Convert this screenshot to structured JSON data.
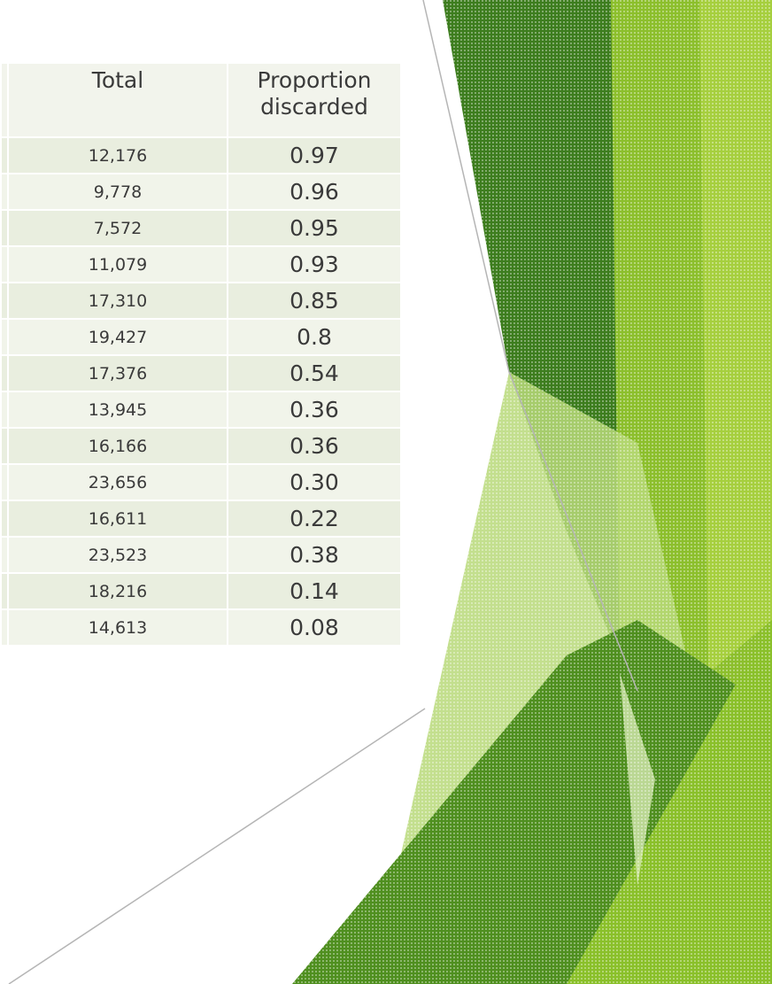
{
  "table": {
    "headers": [
      "Total",
      "Proportion discarded"
    ],
    "rows": [
      [
        "12,176",
        "0.97"
      ],
      [
        "9,778",
        "0.96"
      ],
      [
        "7,572",
        "0.95"
      ],
      [
        "11,079",
        "0.93"
      ],
      [
        "17,310",
        "0.85"
      ],
      [
        "19,427",
        "0.8"
      ],
      [
        "17,376",
        "0.54"
      ],
      [
        "13,945",
        "0.36"
      ],
      [
        "16,166",
        "0.36"
      ],
      [
        "23,656",
        "0.30"
      ],
      [
        "16,611",
        "0.22"
      ],
      [
        "23,523",
        "0.38"
      ],
      [
        "18,216",
        "0.14"
      ],
      [
        "14,613",
        "0.08"
      ]
    ]
  }
}
